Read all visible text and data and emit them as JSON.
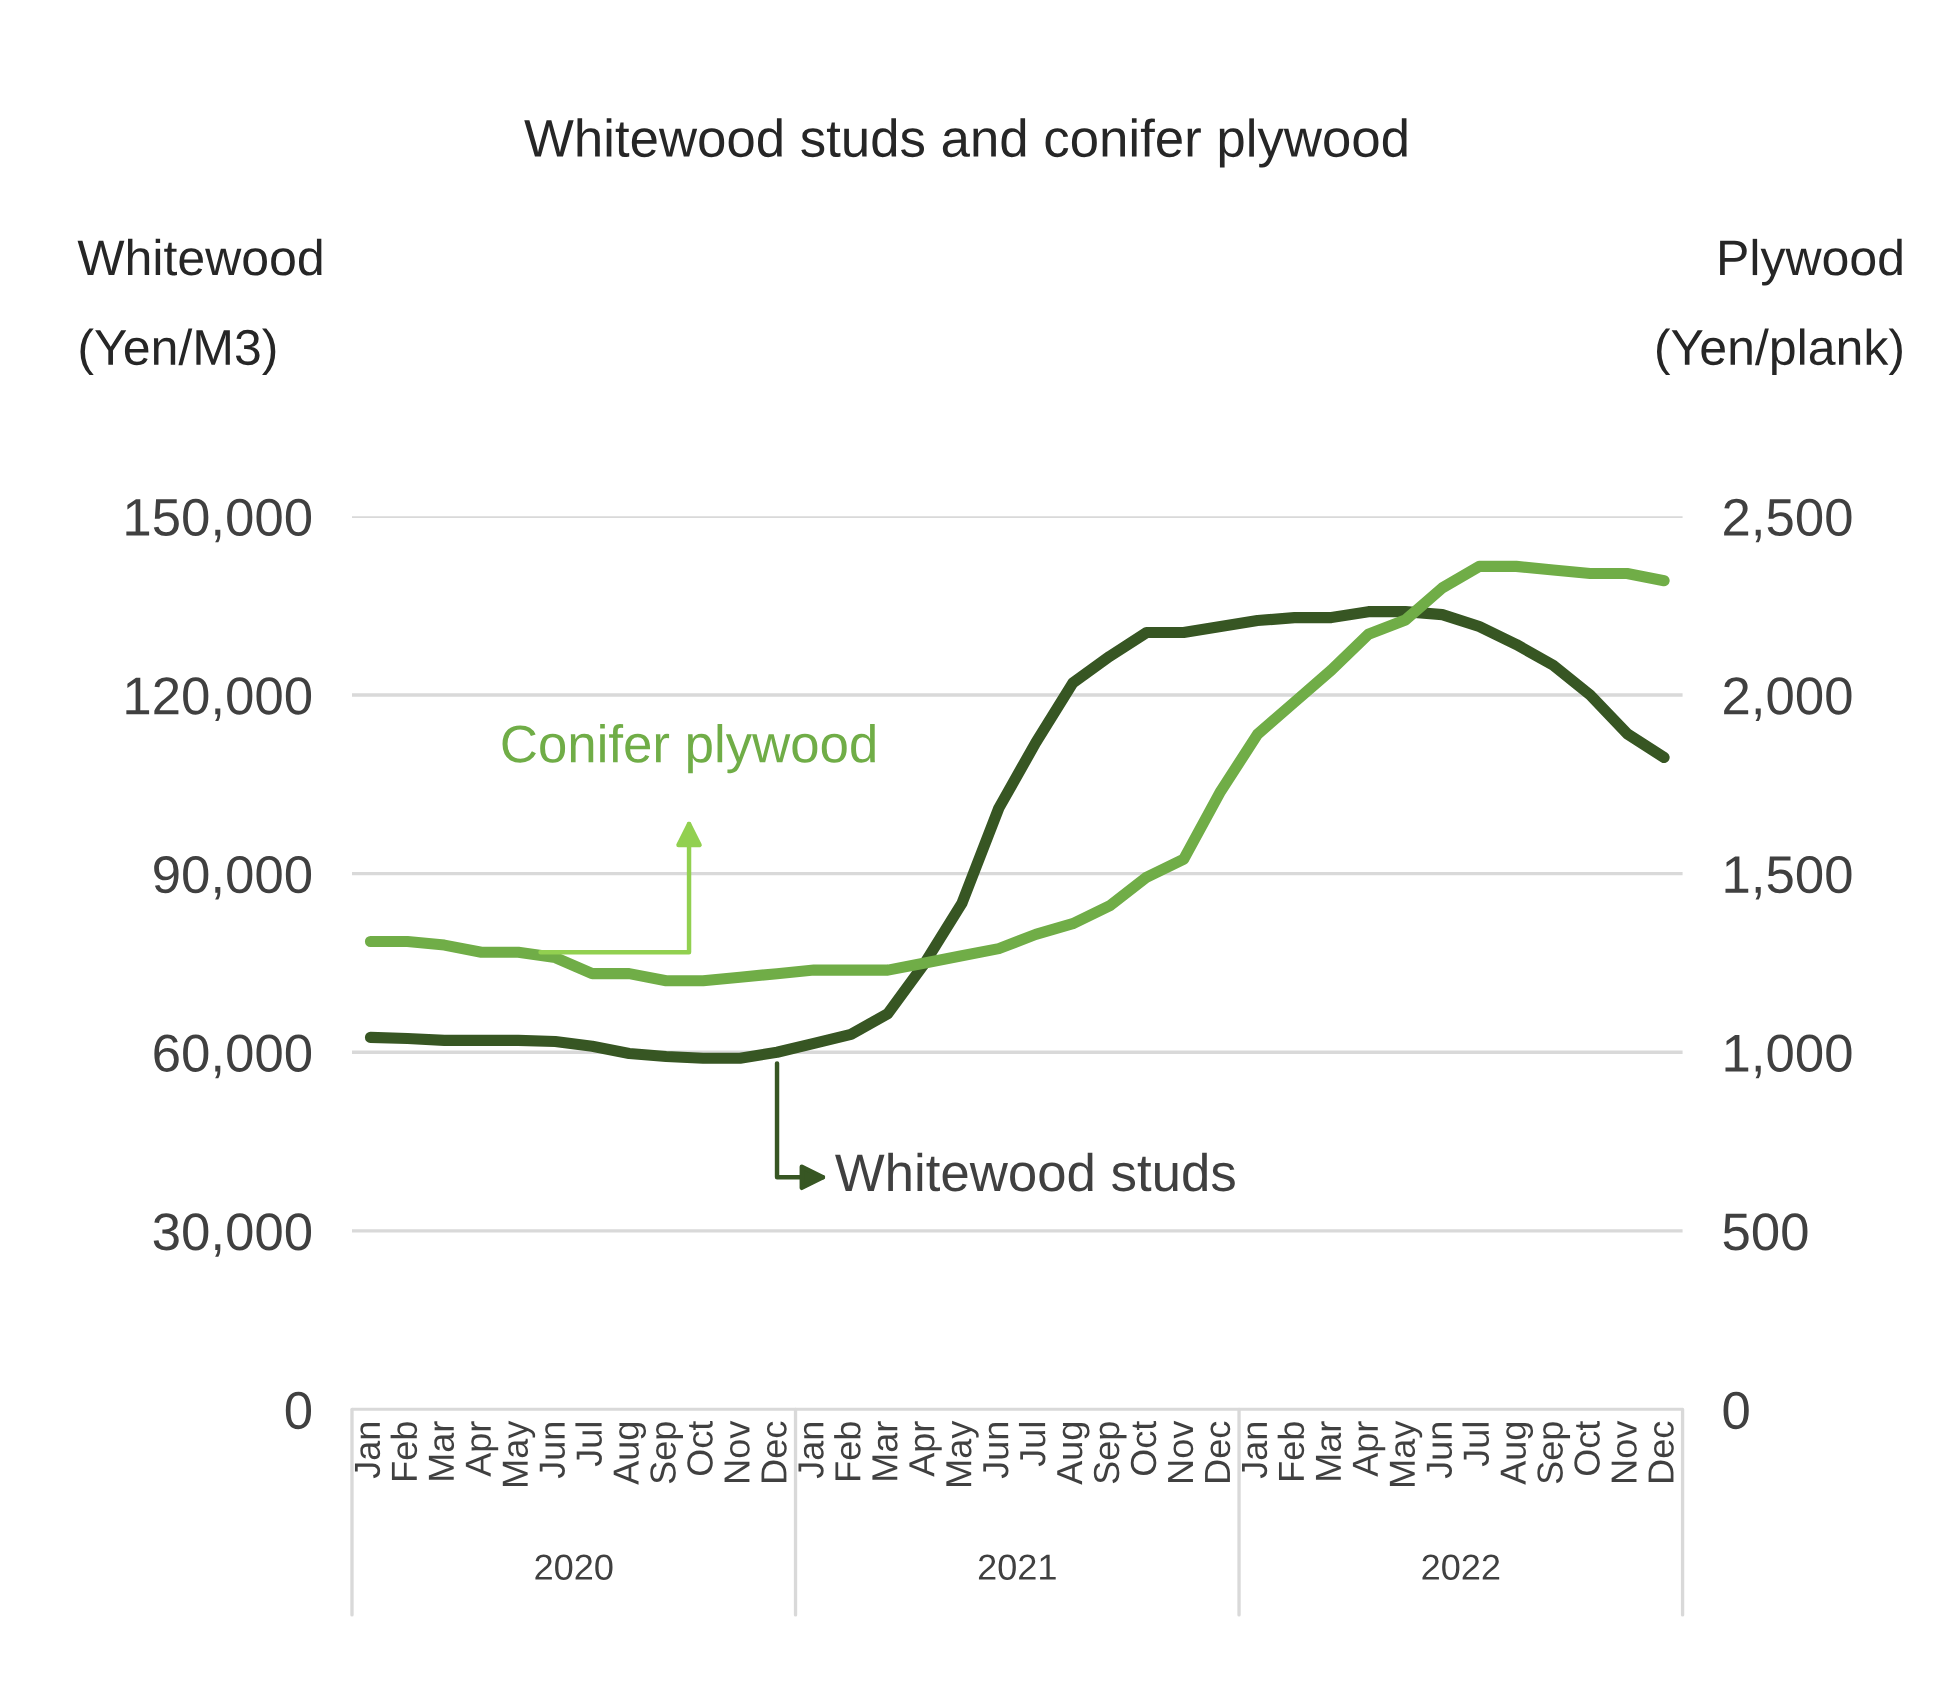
{
  "chart_data": {
    "type": "line",
    "title": "Whitewood studs and conifer plywood",
    "ylabel": "Whitewood\n\n(Yen/M3)",
    "y2label": "Plywood\n\n(Yen/plank)",
    "categories": [
      "Jan",
      "Feb",
      "Mar",
      "Apr",
      "May",
      "Jun",
      "Jul",
      "Aug",
      "Sep",
      "Oct",
      "Nov",
      "Dec",
      "Jan",
      "Feb",
      "Mar",
      "Apr",
      "May",
      "Jun",
      "Jul",
      "Aug",
      "Sep",
      "Oct",
      "Nov",
      "Dec",
      "Jan",
      "Feb",
      "Mar",
      "Apr",
      "May",
      "Jun",
      "Jul",
      "Aug",
      "Sep",
      "Oct",
      "Nov",
      "Dec"
    ],
    "series": [
      {
        "name": "Whitewood studs",
        "color": "#375623",
        "values": [
          62500,
          62300,
          62000,
          62000,
          62000,
          61800,
          61000,
          59800,
          59300,
          59000,
          59000,
          60000,
          61500,
          63000,
          66500,
          75000,
          85000,
          101000,
          112000,
          122000,
          126500,
          130500,
          130500,
          131500,
          132500,
          133000,
          133000,
          134000,
          134000,
          133500,
          131500,
          128500,
          125000,
          120000,
          113500,
          109500
        ]
      },
      {
        "name": "Conifer plywood",
        "color": "#70ad47",
        "axis": "y2",
        "values": [
          1310,
          1310,
          1300,
          1280,
          1280,
          1265,
          1220,
          1220,
          1200,
          1200,
          1210,
          1220,
          1230,
          1230,
          1230,
          1250,
          1270,
          1290,
          1330,
          1360,
          1410,
          1490,
          1540,
          1730,
          1890,
          1980,
          2070,
          2170,
          2210,
          2300,
          2360,
          2360,
          2350,
          2340,
          2340,
          2320
        ]
      }
    ],
    "ylim": [
      0,
      150000
    ],
    "yticks": [
      {
        "value": 0,
        "label": "0"
      },
      {
        "value": 30000,
        "label": "30,000"
      },
      {
        "value": 60000,
        "label": "60,000"
      },
      {
        "value": 90000,
        "label": "90,000"
      },
      {
        "value": 120000,
        "label": "120,000"
      },
      {
        "value": 150000,
        "label": "150,000"
      }
    ],
    "y2lim": [
      0,
      2500
    ],
    "y2ticks": [
      {
        "value": 0,
        "label": "0"
      },
      {
        "value": 500,
        "label": "500"
      },
      {
        "value": 1000,
        "label": "1,000"
      },
      {
        "value": 1500,
        "label": "1,500"
      },
      {
        "value": 2000,
        "label": "2,000"
      },
      {
        "value": 2500,
        "label": "2,500"
      }
    ],
    "annotations": [
      "2020",
      "2021",
      "2022"
    ],
    "grid": "y",
    "marker": "none",
    "line_style": "solid"
  }
}
